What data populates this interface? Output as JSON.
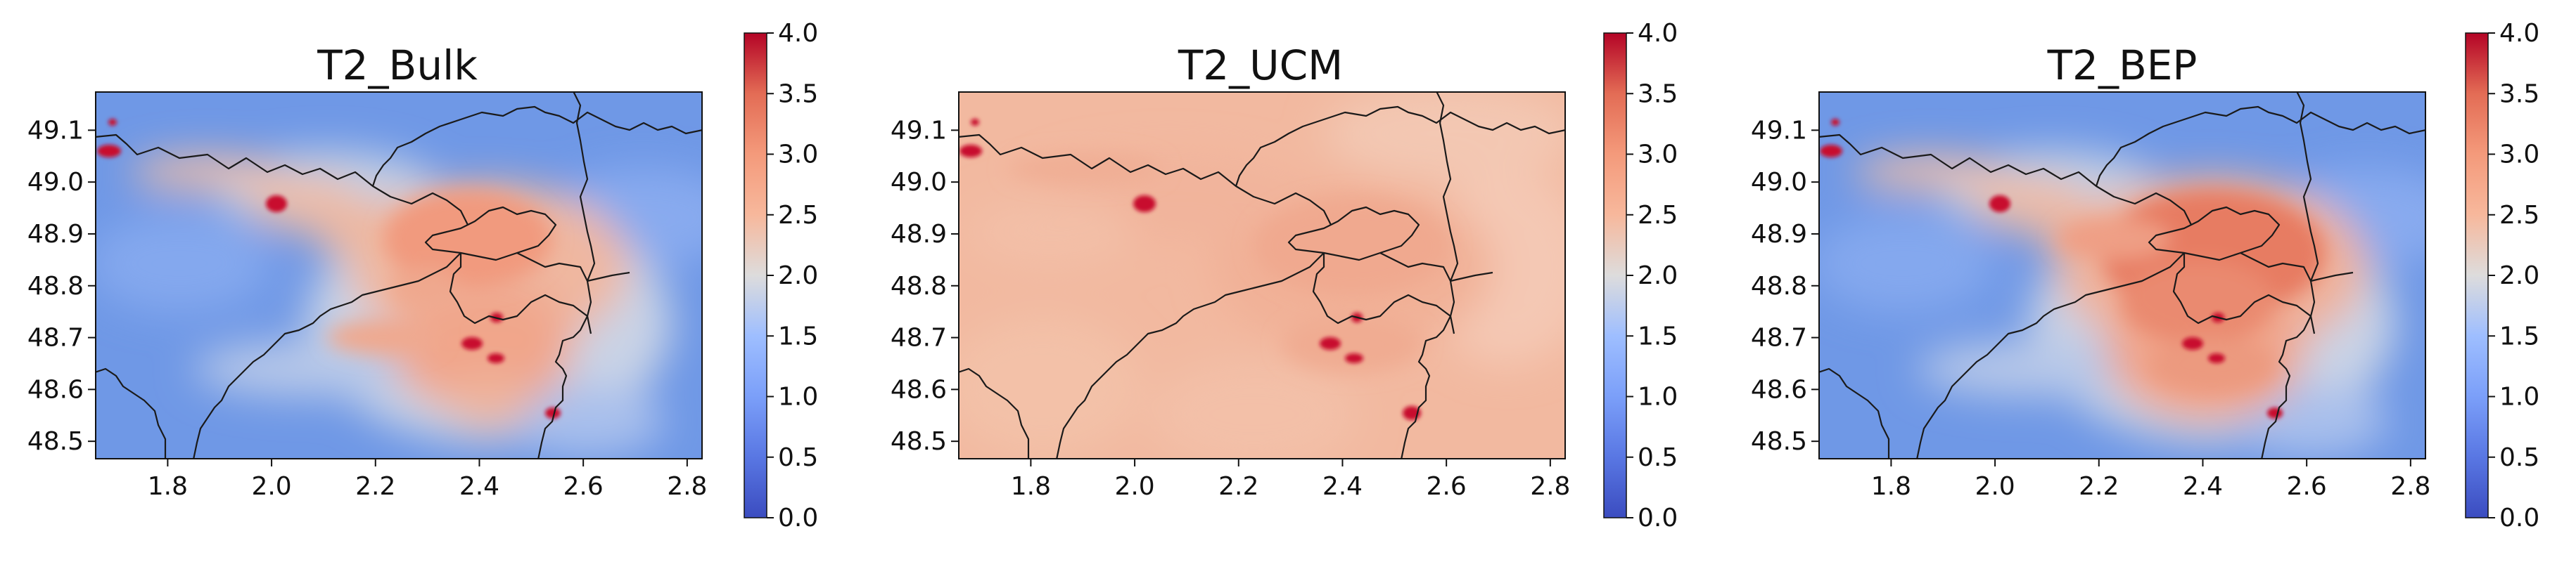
{
  "figure": {
    "colorbar": {
      "colormap": "coolwarm",
      "vmin": 0.0,
      "vmax": 4.0,
      "ticks": [
        "0.0",
        "0.5",
        "1.0",
        "1.5",
        "2.0",
        "2.5",
        "3.0",
        "3.5",
        "4.0"
      ]
    },
    "xticks": [
      "1.8",
      "2.0",
      "2.2",
      "2.4",
      "2.6",
      "2.8"
    ],
    "yticks": [
      "48.5",
      "48.6",
      "48.7",
      "48.8",
      "48.9",
      "49.0",
      "49.1"
    ]
  },
  "chart_data": [
    {
      "type": "heatmap",
      "title": "T2_Bulk",
      "xlim": [
        1.66,
        2.83
      ],
      "ylim": [
        48.465,
        49.175
      ],
      "xlabel": "",
      "ylabel": "",
      "value_range": [
        0.0,
        4.0
      ],
      "background_level": 1.0,
      "hotspots": [
        {
          "x": 1.7,
          "y": 49.01,
          "value": 4.0
        },
        {
          "x": 2.01,
          "y": 48.96,
          "value": 4.0
        },
        {
          "x": 2.42,
          "y": 48.74,
          "value": 4.0
        },
        {
          "x": 2.38,
          "y": 48.69,
          "value": 4.0
        },
        {
          "x": 2.42,
          "y": 48.66,
          "value": 4.0
        },
        {
          "x": 2.53,
          "y": 48.56,
          "value": 4.0
        }
      ]
    },
    {
      "type": "heatmap",
      "title": "T2_UCM",
      "xlim": [
        1.66,
        2.83
      ],
      "ylim": [
        48.465,
        49.175
      ],
      "xlabel": "",
      "ylabel": "",
      "value_range": [
        0.0,
        4.0
      ],
      "background_level": 2.5,
      "hotspots": [
        {
          "x": 1.69,
          "y": 49.01,
          "value": 4.0
        },
        {
          "x": 2.02,
          "y": 48.96,
          "value": 4.0
        },
        {
          "x": 2.42,
          "y": 48.74,
          "value": 4.0
        },
        {
          "x": 2.38,
          "y": 48.69,
          "value": 4.0
        },
        {
          "x": 2.42,
          "y": 48.66,
          "value": 4.0
        },
        {
          "x": 2.53,
          "y": 48.56,
          "value": 4.0
        }
      ]
    },
    {
      "type": "heatmap",
      "title": "T2_BEP",
      "xlim": [
        1.66,
        2.83
      ],
      "ylim": [
        48.465,
        49.175
      ],
      "xlabel": "",
      "ylabel": "",
      "value_range": [
        0.0,
        4.0
      ],
      "background_level": 1.0,
      "hotspots": [
        {
          "x": 1.69,
          "y": 49.01,
          "value": 4.0
        },
        {
          "x": 2.01,
          "y": 48.96,
          "value": 4.0
        },
        {
          "x": 2.42,
          "y": 48.74,
          "value": 4.0
        },
        {
          "x": 2.38,
          "y": 48.69,
          "value": 4.0
        },
        {
          "x": 2.42,
          "y": 48.66,
          "value": 4.0
        },
        {
          "x": 2.53,
          "y": 48.56,
          "value": 4.0
        }
      ]
    }
  ]
}
